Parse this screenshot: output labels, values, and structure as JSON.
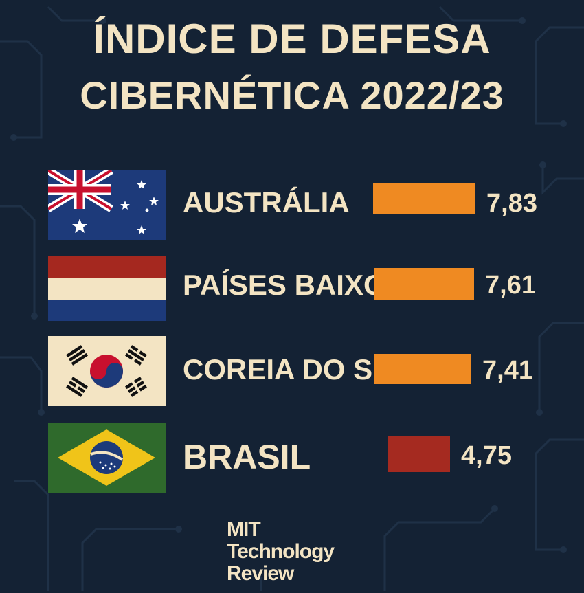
{
  "title": {
    "line1": "ÍNDICE DE DEFESA",
    "line2": "CIBERNÉTICA 2022/23"
  },
  "colors": {
    "background": "#142234",
    "text": "#f3e4c3",
    "bar_high": "#ef8a22",
    "bar_low": "#a52a20"
  },
  "chart_data": {
    "type": "bar",
    "categories": [
      "AUSTRÁLIA",
      "PAÍSES BAIXOS",
      "COREIA DO SUL",
      "BRASIL"
    ],
    "values": [
      7.83,
      7.61,
      7.41,
      4.75
    ],
    "value_labels": [
      "7,83",
      "7,61",
      "7,41",
      "4,75"
    ],
    "flag_icons": [
      "australia-flag-icon",
      "netherlands-flag-icon",
      "south-korea-flag-icon",
      "brazil-flag-icon"
    ],
    "bar_colors": [
      "#ef8a22",
      "#ef8a22",
      "#ef8a22",
      "#a52a20"
    ],
    "title": "ÍNDICE DE DEFESA CIBERNÉTICA 2022/23",
    "xlabel": "",
    "ylabel": "",
    "grid": false,
    "legend": "none"
  },
  "logo": {
    "line1": "MIT",
    "line2": "Technology",
    "line3": "Review"
  }
}
